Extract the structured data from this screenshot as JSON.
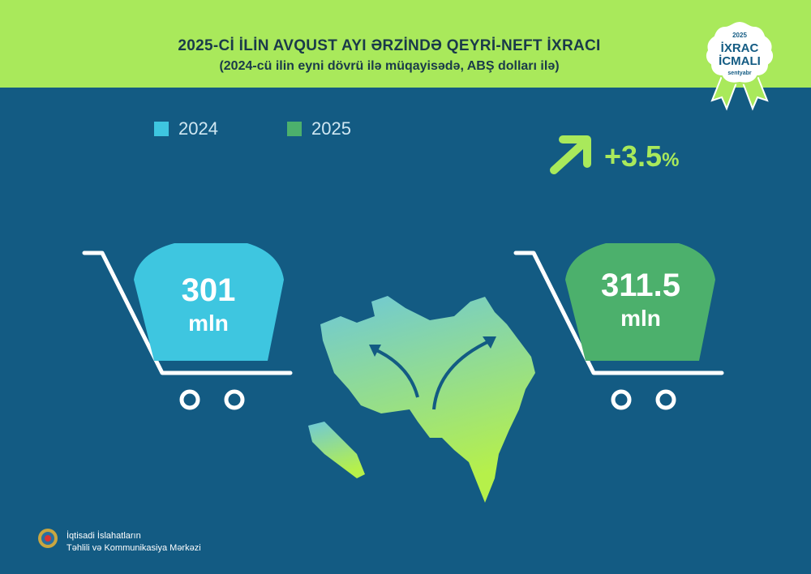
{
  "header": {
    "title": "2025-Cİ İLİN AVQUST AYI ƏRZİNDƏ QEYRİ-NEFT İXRACI",
    "subtitle": "(2024-cü ilin eyni dövrü ilə müqayisədə, ABŞ dolları ilə)"
  },
  "badge": {
    "year": "2025",
    "line1": "İXRAC",
    "line2": "İCMALI",
    "month": "sentyabr"
  },
  "legend": [
    {
      "label": "2024",
      "color": "#3ec6e0"
    },
    {
      "label": "2025",
      "color": "#4cb06c"
    }
  ],
  "growth": {
    "value": "+3.5",
    "unit": "%",
    "icon": "arrow-up-right-icon"
  },
  "values": [
    {
      "number": "301",
      "unit": "mln",
      "color": "#3ec6e0"
    },
    {
      "number": "311.5",
      "unit": "mln",
      "color": "#4cb06c"
    }
  ],
  "colors": {
    "background": "#135b83",
    "accent": "#a9e95b"
  },
  "footer": {
    "org_line1": "İqtisadi İslahatların",
    "org_line2": "Təhlili və Kommunikasiya Mərkəzi"
  }
}
